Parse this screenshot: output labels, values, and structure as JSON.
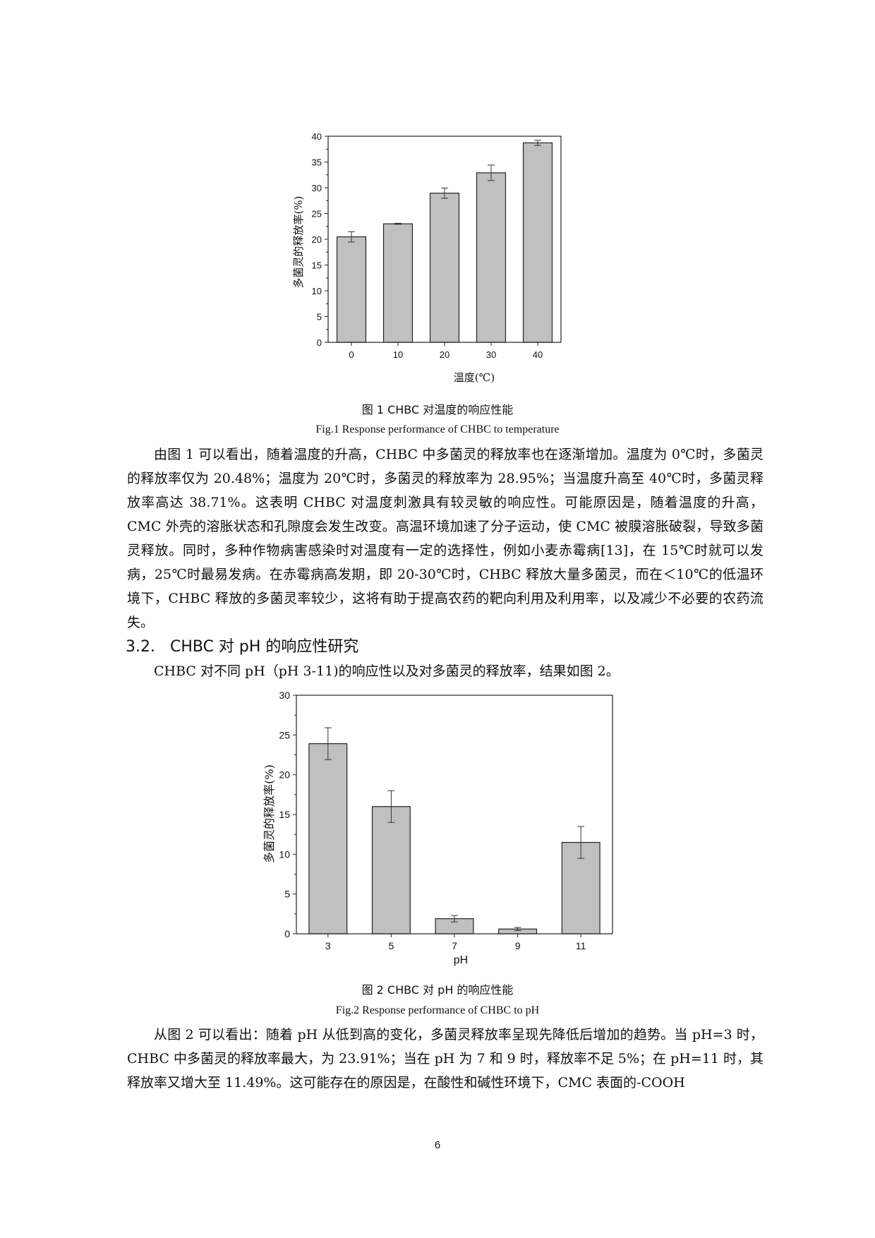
{
  "figure1": {
    "caption_cn": "图 1 CHBC 对温度的响应性能",
    "caption_en": "Fig.1 Response performance of CHBC to temperature",
    "chart_data": {
      "type": "bar",
      "categories": [
        "0",
        "10",
        "20",
        "30",
        "40"
      ],
      "values": [
        20.48,
        23.0,
        28.95,
        32.9,
        38.71
      ],
      "errors": [
        1.0,
        0.1,
        1.0,
        1.5,
        0.5
      ],
      "xlabel": "温度(℃)",
      "ylabel": "多菌灵的释放率(%)",
      "ylim": [
        0,
        40
      ],
      "yticks": [
        0,
        5,
        10,
        15,
        20,
        25,
        30,
        35,
        40
      ],
      "bar_color": "#c0c0c0"
    }
  },
  "paragraph1": "由图 1 可以看出，随着温度的升高，CHBC 中多菌灵的释放率也在逐渐增加。温度为 0℃时，多菌灵的释放率仅为 20.48%；温度为 20℃时，多菌灵的释放率为 28.95%；当温度升高至 40℃时，多菌灵释放率高达 38.71%。这表明 CHBC 对温度刺激具有较灵敏的响应性。可能原因是，随着温度的升高，CMC 外壳的溶胀状态和孔隙度会发生改变。高温环境加速了分子运动，使 CMC 被膜溶胀破裂，导致多菌灵释放。同时，多种作物病害感染时对温度有一定的选择性，例如小麦赤霉病[13]，在 15℃时就可以发病，25℃时最易发病。在赤霉病高发期，即 20-30℃时，CHBC 释放大量多菌灵，而在＜10℃的低温环境下，CHBC 释放的多菌灵率较少，这将有助于提高农药的靶向利用及利用率，以及减少不必要的农药流失。",
  "section": {
    "number": "3.2.",
    "title": "CHBC 对 pH 的响应性研究"
  },
  "paragraph2": "CHBC 对不同 pH（pH 3-11)的响应性以及对多菌灵的释放率，结果如图 2。",
  "figure2": {
    "caption_cn": "图 2 CHBC 对 pH 的响应性能",
    "caption_en": "Fig.2 Response performance of CHBC to pH",
    "chart_data": {
      "type": "bar",
      "categories": [
        "3",
        "5",
        "7",
        "9",
        "11"
      ],
      "values": [
        23.91,
        16.0,
        1.9,
        0.6,
        11.49
      ],
      "errors": [
        2.0,
        2.0,
        0.4,
        0.2,
        2.0
      ],
      "xlabel": "pH",
      "ylabel": "多菌灵的释放率(%)",
      "ylim": [
        0,
        30
      ],
      "yticks": [
        0,
        5,
        10,
        15,
        20,
        25,
        30
      ],
      "bar_color": "#c0c0c0"
    }
  },
  "paragraph3": "从图 2 可以看出：随着 pH 从低到高的变化，多菌灵释放率呈现先降低后增加的趋势。当 pH=3 时，CHBC 中多菌灵的释放率最大，为 23.91%；当在 pH 为 7 和 9 时，释放率不足 5%；在 pH=11 时，其释放率又增大至 11.49%。这可能存在的原因是，在酸性和碱性环境下，CMC 表面的-COOH",
  "page_number": "6"
}
